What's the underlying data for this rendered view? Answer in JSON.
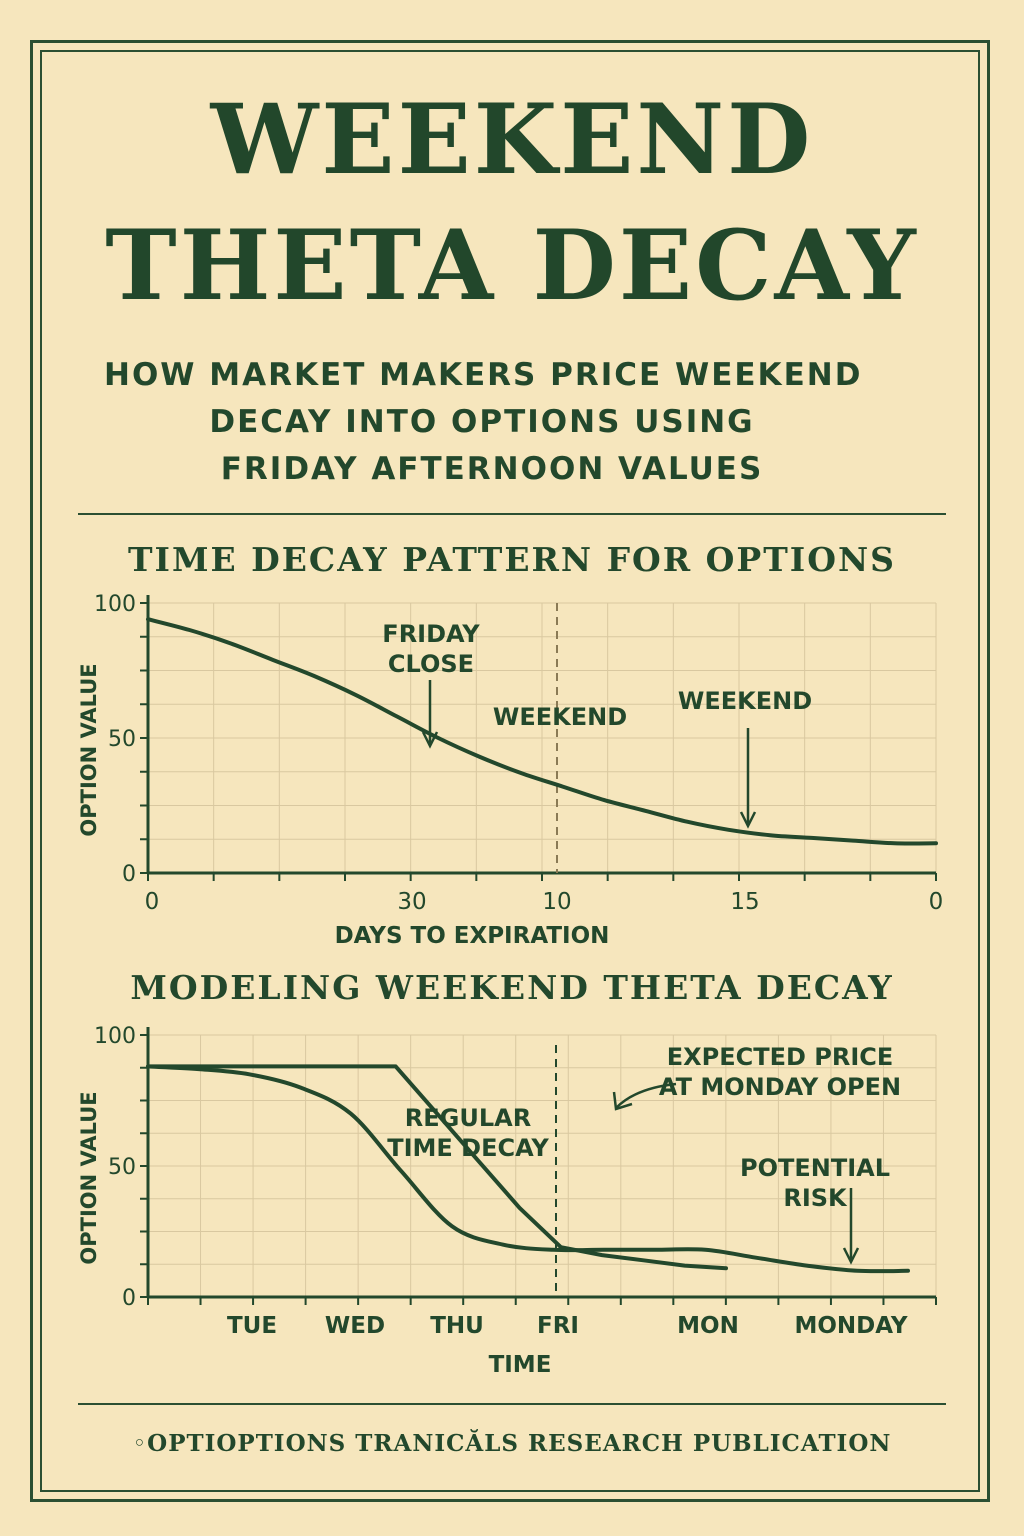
{
  "poster": {
    "title_line1": "WEEKEND",
    "title_line2": "THETA DECAY",
    "subtitle_line1": "HOW MARKET MAKERS PRICE WEEKEND",
    "subtitle_line2": "DECAY INTO OPTIONS USING",
    "subtitle_line3": "FRIDAY AFTERNOON VALUES",
    "footer": "◦OPTIOPTIONS TRANICĂLS RESEARCH PUBLICATION"
  },
  "colors": {
    "background": "#f6e6bd",
    "ink": "#23482c",
    "grid": "#d9c8a0"
  },
  "chart_data": [
    {
      "type": "line",
      "title": "TIME DECAY PATTERN FOR OPTIONS",
      "xlabel": "DAYS TO EXPIRATION",
      "ylabel": "OPTION VALUE",
      "ylim": [
        0,
        100
      ],
      "yticks": [
        "0",
        "50",
        "100"
      ],
      "xticks": [
        "0",
        "30",
        "10",
        "15",
        "0"
      ],
      "grid": true,
      "series": [
        {
          "values": [
            94,
            90,
            85,
            79,
            73,
            66,
            58,
            50,
            43,
            37,
            32,
            27,
            23,
            19,
            16,
            14,
            13,
            12,
            11,
            11
          ]
        }
      ],
      "annotations": [
        {
          "text_lines": [
            "FRIDAY",
            "CLOSE"
          ],
          "arrow": true
        },
        {
          "text_lines": [
            "WEEKEND"
          ],
          "arrow": false
        },
        {
          "text_lines": [
            "WEEKEND"
          ],
          "arrow": true
        }
      ],
      "weekend_divider": true
    },
    {
      "type": "line",
      "title": "MODELING WEEKEND THETA DECAY",
      "xlabel": "TIME",
      "ylabel": "OPTION VALUE",
      "ylim": [
        0,
        100
      ],
      "yticks": [
        "0",
        "50",
        "100"
      ],
      "xticks": [
        "TUE",
        "WED",
        "THU",
        "FRI",
        "MON",
        "MONDAY"
      ],
      "grid": true,
      "series": [
        {
          "values": [
            88,
            88,
            88,
            88,
            88,
            88,
            88,
            70,
            52,
            34,
            19,
            16,
            14,
            12,
            11
          ]
        },
        {
          "values": [
            88,
            87,
            85,
            80,
            70,
            48,
            27,
            20,
            18,
            18,
            18,
            18,
            15,
            12,
            10,
            10
          ]
        }
      ],
      "annotations": [
        {
          "text_lines": [
            "REGULAR",
            "TIME DECAY"
          ],
          "arrow": false
        },
        {
          "text_lines": [
            "EXPECTED PRICE",
            "AT MONDAY OPEN"
          ],
          "arrow": true
        },
        {
          "text_lines": [
            "POTENTIAL",
            "RISK"
          ],
          "arrow": true
        }
      ],
      "weekend_divider": true
    }
  ]
}
